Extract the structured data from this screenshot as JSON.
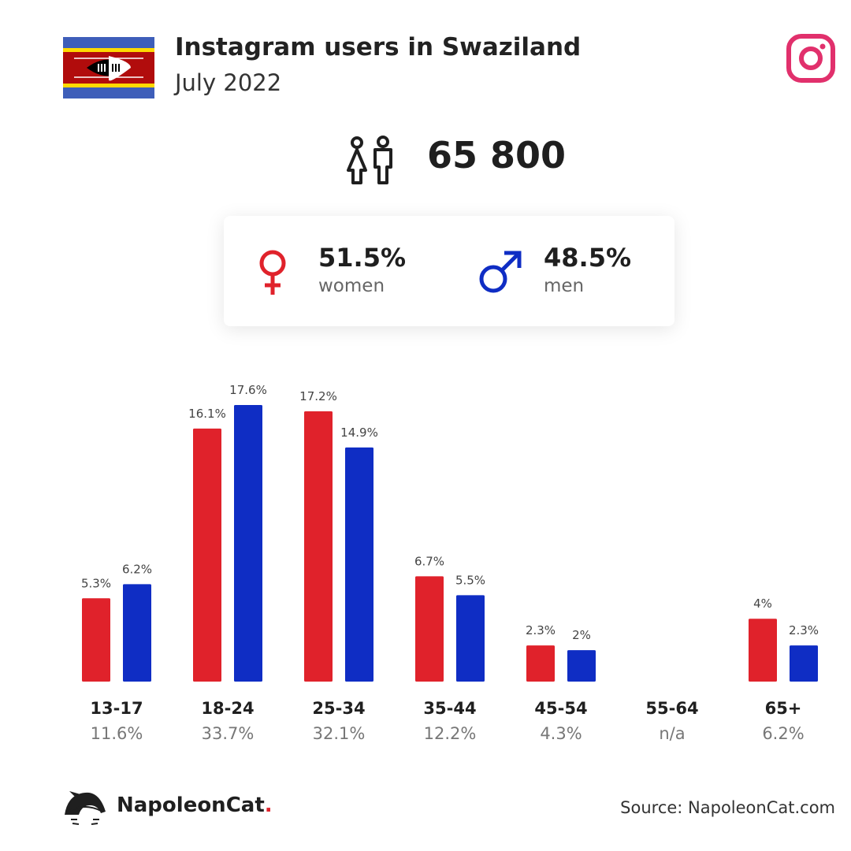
{
  "header": {
    "title": "Instagram users in Swaziland",
    "subtitle": "July 2022"
  },
  "total_users": "65 800",
  "gender": {
    "women_pct": "51.5%",
    "women_label": "women",
    "men_pct": "48.5%",
    "men_label": "men"
  },
  "colors": {
    "women": "#e0222b",
    "men": "#0f2dc4",
    "instagram": "#e1306c"
  },
  "chart_data": {
    "type": "bar",
    "categories": [
      "13-17",
      "18-24",
      "25-34",
      "35-44",
      "45-54",
      "55-64",
      "65+"
    ],
    "category_totals": [
      "11.6%",
      "33.7%",
      "32.1%",
      "12.2%",
      "4.3%",
      "n/a",
      "6.2%"
    ],
    "series": [
      {
        "name": "women",
        "values": [
          5.3,
          16.1,
          17.2,
          6.7,
          2.3,
          null,
          4.0
        ],
        "labels": [
          "5.3%",
          "16.1%",
          "17.2%",
          "6.7%",
          "2.3%",
          "",
          "4%"
        ]
      },
      {
        "name": "men",
        "values": [
          6.2,
          17.6,
          14.9,
          5.5,
          2.0,
          null,
          2.3
        ],
        "labels": [
          "6.2%",
          "17.6%",
          "14.9%",
          "5.5%",
          "2%",
          "",
          "2.3%"
        ]
      }
    ],
    "ylim": [
      0,
      17.6
    ],
    "grid": false,
    "legend": "none"
  },
  "footer": {
    "brand_name": "NapoleonCat",
    "brand_dot": ".",
    "source": "Source: NapoleonCat.com"
  }
}
